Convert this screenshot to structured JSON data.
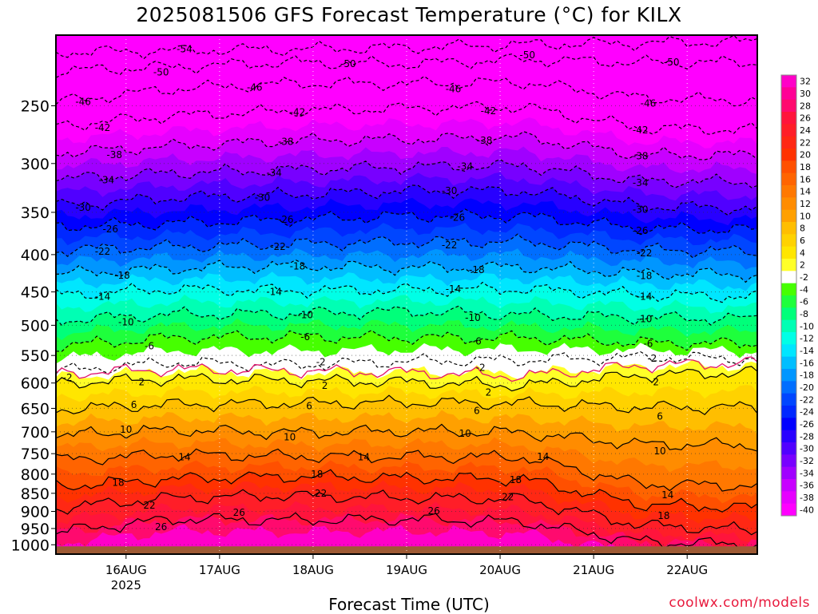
{
  "title": "2025081506 GFS Forecast Temperature (°C) for KILX",
  "xlabel": "Forecast Time (UTC)",
  "credit": "coolwx.com/models",
  "chart_data": {
    "type": "heatmap",
    "title": "2025081506 GFS Forecast Temperature (°C) for KILX",
    "xlabel": "Forecast Time (UTC)",
    "ylabel": "",
    "y_scale": "log",
    "y_inverted": true,
    "y_ticks": [
      250,
      300,
      350,
      400,
      450,
      500,
      550,
      600,
      650,
      700,
      750,
      800,
      850,
      900,
      950,
      1000
    ],
    "x_ticks": [
      {
        "label": "16AUG",
        "sublabel": "2025",
        "t": 18
      },
      {
        "label": "17AUG",
        "sublabel": "",
        "t": 42
      },
      {
        "label": "18AUG",
        "sublabel": "",
        "t": 66
      },
      {
        "label": "19AUG",
        "sublabel": "",
        "t": 90
      },
      {
        "label": "20AUG",
        "sublabel": "",
        "t": 114
      },
      {
        "label": "21AUG",
        "sublabel": "",
        "t": 138
      },
      {
        "label": "22AUG",
        "sublabel": "",
        "t": 162
      }
    ],
    "x_range_hours": [
      0,
      180
    ],
    "y_range_hPa": [
      200,
      1030
    ],
    "ground_color": "#9e5a34",
    "colorbar": {
      "levels": [
        32,
        30,
        28,
        26,
        24,
        22,
        20,
        18,
        16,
        14,
        12,
        10,
        8,
        6,
        4,
        2,
        -2,
        -4,
        -6,
        -8,
        -10,
        -12,
        -14,
        -16,
        -18,
        -20,
        -22,
        -24,
        -26,
        -28,
        -30,
        -32,
        -34,
        -36,
        -38,
        -40
      ],
      "colors": [
        "#ff00c8",
        "#ff0096",
        "#ff0a6e",
        "#ff143c",
        "#ff1e28",
        "#ff2814",
        "#ff3200",
        "#ff5000",
        "#ff6400",
        "#ff7800",
        "#ff8c00",
        "#ffa000",
        "#ffbe00",
        "#ffd200",
        "#ffe600",
        "#ffff28",
        "#ffffff",
        "#46ff00",
        "#1eff3c",
        "#00ff7a",
        "#00ffb4",
        "#00ffe6",
        "#00e6ff",
        "#00beff",
        "#0096ff",
        "#006eff",
        "#0046ff",
        "#0028ff",
        "#0000ff",
        "#2800ff",
        "#5000ff",
        "#7800ff",
        "#a000ff",
        "#c800ff",
        "#e600ff",
        "#ff00ff"
      ]
    },
    "contours": [
      {
        "label": "-54",
        "profile": [
          [
            0,
            211
          ],
          [
            30,
            210
          ],
          [
            60,
            209
          ],
          [
            90,
            208
          ],
          [
            120,
            206
          ],
          [
            150,
            205
          ],
          [
            180,
            204
          ]
        ]
      },
      {
        "label": "-50",
        "profile": [
          [
            0,
            224
          ],
          [
            30,
            221
          ],
          [
            60,
            218
          ],
          [
            90,
            219
          ],
          [
            120,
            216
          ],
          [
            150,
            218
          ],
          [
            180,
            218
          ]
        ]
      },
      {
        "label": "-46",
        "profile": [
          [
            0,
            247
          ],
          [
            30,
            237
          ],
          [
            60,
            233
          ],
          [
            90,
            233
          ],
          [
            120,
            232
          ],
          [
            150,
            244
          ],
          [
            180,
            246
          ]
        ]
      },
      {
        "label": "-42",
        "profile": [
          [
            0,
            266
          ],
          [
            30,
            258
          ],
          [
            60,
            254
          ],
          [
            90,
            252
          ],
          [
            120,
            251
          ],
          [
            150,
            268
          ],
          [
            180,
            270
          ]
        ]
      },
      {
        "label": "-38",
        "profile": [
          [
            0,
            290
          ],
          [
            30,
            284
          ],
          [
            60,
            279
          ],
          [
            90,
            278
          ],
          [
            120,
            276
          ],
          [
            150,
            292
          ],
          [
            180,
            292
          ]
        ]
      },
      {
        "label": "-34",
        "profile": [
          [
            0,
            315
          ],
          [
            30,
            309
          ],
          [
            60,
            306
          ],
          [
            90,
            303
          ],
          [
            120,
            302
          ],
          [
            150,
            317
          ],
          [
            180,
            318
          ]
        ]
      },
      {
        "label": "-30",
        "profile": [
          [
            0,
            343
          ],
          [
            30,
            334
          ],
          [
            60,
            331
          ],
          [
            90,
            327
          ],
          [
            120,
            327
          ],
          [
            150,
            343
          ],
          [
            180,
            346
          ]
        ]
      },
      {
        "label": "-26",
        "profile": [
          [
            0,
            366
          ],
          [
            30,
            362
          ],
          [
            60,
            358
          ],
          [
            90,
            354
          ],
          [
            120,
            354
          ],
          [
            150,
            368
          ],
          [
            180,
            370
          ]
        ]
      },
      {
        "label": "-22",
        "profile": [
          [
            0,
            394
          ],
          [
            30,
            390
          ],
          [
            60,
            387
          ],
          [
            90,
            384
          ],
          [
            120,
            384
          ],
          [
            150,
            394
          ],
          [
            180,
            396
          ]
        ]
      },
      {
        "label": "-18",
        "profile": [
          [
            0,
            425
          ],
          [
            30,
            418
          ],
          [
            60,
            414
          ],
          [
            90,
            417
          ],
          [
            120,
            416
          ],
          [
            150,
            424
          ],
          [
            180,
            426
          ]
        ]
      },
      {
        "label": "-14",
        "profile": [
          [
            0,
            454
          ],
          [
            30,
            446
          ],
          [
            60,
            448
          ],
          [
            90,
            447
          ],
          [
            120,
            446
          ],
          [
            150,
            454
          ],
          [
            180,
            457
          ]
        ]
      },
      {
        "label": "-10",
        "profile": [
          [
            0,
            492
          ],
          [
            30,
            483
          ],
          [
            60,
            482
          ],
          [
            90,
            478
          ],
          [
            120,
            484
          ],
          [
            150,
            488
          ],
          [
            180,
            490
          ]
        ]
      },
      {
        "label": "-6",
        "profile": [
          [
            0,
            534
          ],
          [
            30,
            520
          ],
          [
            60,
            518
          ],
          [
            90,
            520
          ],
          [
            120,
            520
          ],
          [
            150,
            528
          ],
          [
            180,
            530
          ]
        ]
      },
      {
        "label": "-2",
        "profile": [
          [
            0,
            578
          ],
          [
            30,
            562
          ],
          [
            60,
            567
          ],
          [
            90,
            560
          ],
          [
            120,
            558
          ],
          [
            150,
            553
          ],
          [
            180,
            556
          ]
        ]
      },
      {
        "label": "2",
        "profile": [
          [
            0,
            600
          ],
          [
            30,
            592
          ],
          [
            60,
            595
          ],
          [
            90,
            598
          ],
          [
            120,
            605
          ],
          [
            150,
            585
          ],
          [
            180,
            580
          ]
        ]
      },
      {
        "label": "6",
        "profile": [
          [
            0,
            652
          ],
          [
            30,
            642
          ],
          [
            60,
            640
          ],
          [
            90,
            638
          ],
          [
            120,
            640
          ],
          [
            150,
            648
          ],
          [
            180,
            648
          ]
        ]
      },
      {
        "label": "10",
        "profile": [
          [
            0,
            708
          ],
          [
            30,
            696
          ],
          [
            60,
            702
          ],
          [
            90,
            698
          ],
          [
            120,
            702
          ],
          [
            150,
            728
          ],
          [
            180,
            730
          ]
        ]
      },
      {
        "label": "14",
        "profile": [
          [
            0,
            765
          ],
          [
            30,
            752
          ],
          [
            60,
            756
          ],
          [
            90,
            757
          ],
          [
            120,
            758
          ],
          [
            150,
            825
          ],
          [
            180,
            830
          ]
        ]
      },
      {
        "label": "18",
        "profile": [
          [
            0,
            832
          ],
          [
            30,
            812
          ],
          [
            60,
            806
          ],
          [
            90,
            810
          ],
          [
            120,
            812
          ],
          [
            150,
            880
          ],
          [
            180,
            890
          ]
        ]
      },
      {
        "label": "22",
        "profile": [
          [
            0,
            890
          ],
          [
            30,
            862
          ],
          [
            60,
            856
          ],
          [
            90,
            862
          ],
          [
            120,
            866
          ],
          [
            150,
            940
          ],
          [
            180,
            955
          ]
        ]
      },
      {
        "label": "26",
        "profile": [
          [
            0,
            960
          ],
          [
            30,
            922
          ],
          [
            60,
            925
          ],
          [
            90,
            922
          ],
          [
            120,
            930
          ],
          [
            150,
            990
          ],
          [
            180,
            1000
          ]
        ]
      }
    ],
    "contour_labels": [
      {
        "text": "-54",
        "t": 33,
        "p": 209
      },
      {
        "text": "-50",
        "t": 27,
        "p": 225
      },
      {
        "text": "-50",
        "t": 75,
        "p": 219
      },
      {
        "text": "-50",
        "t": 121,
        "p": 213
      },
      {
        "text": "-50",
        "t": 158,
        "p": 218
      },
      {
        "text": "-46",
        "t": 7,
        "p": 247
      },
      {
        "text": "-46",
        "t": 51,
        "p": 236
      },
      {
        "text": "-46",
        "t": 102,
        "p": 237
      },
      {
        "text": "-46",
        "t": 152,
        "p": 248
      },
      {
        "text": "-42",
        "t": 12,
        "p": 268
      },
      {
        "text": "-42",
        "t": 62,
        "p": 255
      },
      {
        "text": "-42",
        "t": 111,
        "p": 254
      },
      {
        "text": "-42",
        "t": 150,
        "p": 270
      },
      {
        "text": "-38",
        "t": 15,
        "p": 292
      },
      {
        "text": "-38",
        "t": 59,
        "p": 280
      },
      {
        "text": "-38",
        "t": 110,
        "p": 279
      },
      {
        "text": "-38",
        "t": 150,
        "p": 293
      },
      {
        "text": "-34",
        "t": 13,
        "p": 316
      },
      {
        "text": "-34",
        "t": 56,
        "p": 309
      },
      {
        "text": "-34",
        "t": 105,
        "p": 303
      },
      {
        "text": "-34",
        "t": 150,
        "p": 319
      },
      {
        "text": "-30",
        "t": 7,
        "p": 345
      },
      {
        "text": "-30",
        "t": 53,
        "p": 334
      },
      {
        "text": "-30",
        "t": 101,
        "p": 327
      },
      {
        "text": "-30",
        "t": 150,
        "p": 347
      },
      {
        "text": "-26",
        "t": 14,
        "p": 369
      },
      {
        "text": "-26",
        "t": 59,
        "p": 358
      },
      {
        "text": "-26",
        "t": 103,
        "p": 356
      },
      {
        "text": "-26",
        "t": 150,
        "p": 371
      },
      {
        "text": "-22",
        "t": 12,
        "p": 396
      },
      {
        "text": "-22",
        "t": 57,
        "p": 390
      },
      {
        "text": "-22",
        "t": 101,
        "p": 388
      },
      {
        "text": "-22",
        "t": 151,
        "p": 398
      },
      {
        "text": "-18",
        "t": 17,
        "p": 427
      },
      {
        "text": "-18",
        "t": 62,
        "p": 415
      },
      {
        "text": "-18",
        "t": 108,
        "p": 420
      },
      {
        "text": "-18",
        "t": 151,
        "p": 428
      },
      {
        "text": "-14",
        "t": 12,
        "p": 457
      },
      {
        "text": "-14",
        "t": 56,
        "p": 450
      },
      {
        "text": "-14",
        "t": 102,
        "p": 446
      },
      {
        "text": "-14",
        "t": 151,
        "p": 457
      },
      {
        "text": "-10",
        "t": 18,
        "p": 495
      },
      {
        "text": "-10",
        "t": 64,
        "p": 484
      },
      {
        "text": "-10",
        "t": 107,
        "p": 488
      },
      {
        "text": "-10",
        "t": 151,
        "p": 490
      },
      {
        "text": "-6",
        "t": 24,
        "p": 534
      },
      {
        "text": "-6",
        "t": 64,
        "p": 519
      },
      {
        "text": "-6",
        "t": 108,
        "p": 526
      },
      {
        "text": "-6",
        "t": 152,
        "p": 530
      },
      {
        "text": "-2",
        "t": 3,
        "p": 590
      },
      {
        "text": "-2",
        "t": 68,
        "p": 562
      },
      {
        "text": "-2",
        "t": 109,
        "p": 572
      },
      {
        "text": "-2",
        "t": 153,
        "p": 555
      },
      {
        "text": "2",
        "t": 22,
        "p": 598
      },
      {
        "text": "2",
        "t": 69,
        "p": 605
      },
      {
        "text": "2",
        "t": 111,
        "p": 618
      },
      {
        "text": "2",
        "t": 154,
        "p": 598
      },
      {
        "text": "6",
        "t": 20,
        "p": 643
      },
      {
        "text": "6",
        "t": 65,
        "p": 645
      },
      {
        "text": "6",
        "t": 108,
        "p": 655
      },
      {
        "text": "6",
        "t": 155,
        "p": 667
      },
      {
        "text": "10",
        "t": 18,
        "p": 695
      },
      {
        "text": "10",
        "t": 60,
        "p": 712
      },
      {
        "text": "10",
        "t": 105,
        "p": 704
      },
      {
        "text": "10",
        "t": 155,
        "p": 744
      },
      {
        "text": "14",
        "t": 33,
        "p": 758
      },
      {
        "text": "14",
        "t": 79,
        "p": 758
      },
      {
        "text": "14",
        "t": 125,
        "p": 757
      },
      {
        "text": "14",
        "t": 157,
        "p": 855
      },
      {
        "text": "18",
        "t": 16,
        "p": 822
      },
      {
        "text": "18",
        "t": 67,
        "p": 800
      },
      {
        "text": "18",
        "t": 118,
        "p": 815
      },
      {
        "text": "18",
        "t": 156,
        "p": 913
      },
      {
        "text": "22",
        "t": 24,
        "p": 883
      },
      {
        "text": "22",
        "t": 68,
        "p": 850
      },
      {
        "text": "22",
        "t": 116,
        "p": 860
      },
      {
        "text": "26",
        "t": 27,
        "p": 945
      },
      {
        "text": "26",
        "t": 47,
        "p": 903
      },
      {
        "text": "26",
        "t": 97,
        "p": 899
      }
    ]
  }
}
